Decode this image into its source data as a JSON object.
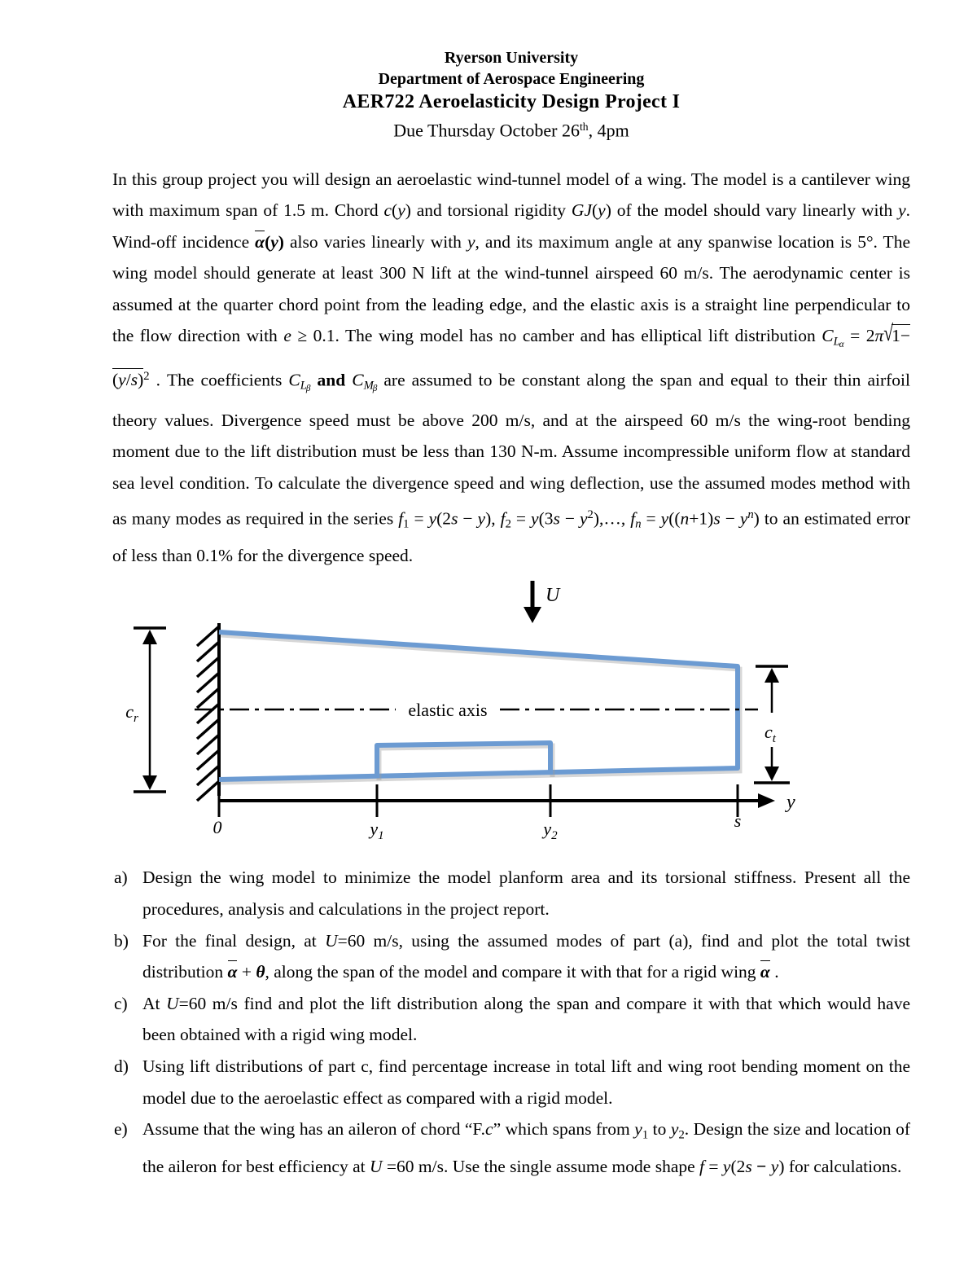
{
  "header": {
    "university": "Ryerson University",
    "department": "Department of Aerospace Engineering",
    "course_title": "AER722 Aeroelasticity Design Project I",
    "due": {
      "prefix": "Due Thursday October 26",
      "sup": "th",
      "suffix": ", 4pm"
    }
  },
  "intro_segments": [
    {
      "t": "In this group project you will design an aeroelastic wind-tunnel model of a wing. The model is a cantilever wing with maximum span of 1.5 m. Chord "
    },
    {
      "t": "c",
      "s": "i"
    },
    {
      "t": "("
    },
    {
      "t": "y",
      "s": "i"
    },
    {
      "t": ") and torsional rigidity "
    },
    {
      "t": "GJ",
      "s": "i"
    },
    {
      "t": "("
    },
    {
      "t": "y",
      "s": "i"
    },
    {
      "t": ")  of the model should vary linearly with "
    },
    {
      "t": "y",
      "s": "i"
    },
    {
      "t": ". Wind-off incidence "
    },
    {
      "t": "α",
      "s": "bi over"
    },
    {
      "t": "(",
      "s": "b"
    },
    {
      "t": "y",
      "s": "bi"
    },
    {
      "t": ")",
      "s": "b"
    },
    {
      "t": " also varies linearly with "
    },
    {
      "t": "y",
      "s": "i"
    },
    {
      "t": ", and its maximum angle at any spanwise location is 5°. The wing model should generate at least 300 N lift at the wind-tunnel airspeed 60 m/s. The aerodynamic center is assumed at the quarter chord point from the leading edge, and the elastic axis is a straight line perpendicular to the flow direction with "
    },
    {
      "t": "e",
      "s": "i"
    },
    {
      "t": " ≥ 0.1.  The wing model has no camber and has elliptical lift distribution "
    },
    {
      "t": "C",
      "s": "i"
    },
    {
      "t": "L",
      "s": "i sub"
    },
    {
      "t": "α",
      "s": "i subsub"
    },
    {
      "t": " = 2"
    },
    {
      "t": "π",
      "s": "i"
    },
    {
      "t": "√",
      "s": "rad"
    },
    {
      "t": "1−(",
      "s": "over"
    },
    {
      "t": "y",
      "s": "i over"
    },
    {
      "t": "/",
      "s": "over"
    },
    {
      "t": "s",
      "s": "i over"
    },
    {
      "t": ")",
      "s": "over"
    },
    {
      "t": "2",
      "s": "sup"
    },
    {
      "t": " .  The coefficients "
    },
    {
      "t": "C",
      "s": "i"
    },
    {
      "t": "L",
      "s": "i sub"
    },
    {
      "t": "β",
      "s": "i subsub"
    },
    {
      "t": " and ",
      "s": "b"
    },
    {
      "t": "C",
      "s": "i"
    },
    {
      "t": "M",
      "s": "i sub"
    },
    {
      "t": "β",
      "s": "i subsub"
    },
    {
      "t": " are assumed to be constant along the span and equal to their thin airfoil theory values. Divergence speed must be above 200 m/s, and at the airspeed 60 m/s the wing-root bending moment due to the lift distribution must be less than 130 N-m. Assume incompressible uniform flow at standard sea level condition. To calculate the divergence speed and wing deflection, use the assumed modes method with as many modes as required in the series "
    },
    {
      "t": "f",
      "s": "i"
    },
    {
      "t": "1",
      "s": "sub"
    },
    {
      "t": " = "
    },
    {
      "t": "y",
      "s": "i"
    },
    {
      "t": "(2"
    },
    {
      "t": "s",
      "s": "i"
    },
    {
      "t": " − "
    },
    {
      "t": "y",
      "s": "i"
    },
    {
      "t": "), "
    },
    {
      "t": "f",
      "s": "i"
    },
    {
      "t": "2",
      "s": "sub"
    },
    {
      "t": " = "
    },
    {
      "t": "y",
      "s": "i"
    },
    {
      "t": "(3"
    },
    {
      "t": "s",
      "s": "i"
    },
    {
      "t": " − "
    },
    {
      "t": "y",
      "s": "i"
    },
    {
      "t": "2",
      "s": "sup"
    },
    {
      "t": "),…, "
    },
    {
      "t": "f",
      "s": "i"
    },
    {
      "t": "n",
      "s": "i sub"
    },
    {
      "t": " = "
    },
    {
      "t": "y",
      "s": "i"
    },
    {
      "t": "(("
    },
    {
      "t": "n",
      "s": "i"
    },
    {
      "t": "+1)"
    },
    {
      "t": "s",
      "s": "i"
    },
    {
      "t": " − "
    },
    {
      "t": "y",
      "s": "i"
    },
    {
      "t": "n",
      "s": "i sup"
    },
    {
      "t": ")"
    },
    {
      "t": " to an estimated error of less than 0.1% for the divergence speed."
    }
  ],
  "figure": {
    "flow_label": "U",
    "elastic_axis_label": "elastic axis",
    "root_chord": {
      "base": "c",
      "sub": "r"
    },
    "tip_chord": {
      "base": "c",
      "sub": "t"
    },
    "axis_label": "y",
    "origin_label": "0",
    "y1": {
      "base": "y",
      "sub": "1"
    },
    "y2": {
      "base": "y",
      "sub": "2"
    },
    "span_label": "s",
    "wing_color": "#6c9bd2"
  },
  "tasks": [
    {
      "marker": "a)",
      "segments": [
        {
          "t": "Design the wing model to minimize the model planform area and its torsional stiffness. Present all the procedures, analysis and calculations in the project report."
        }
      ]
    },
    {
      "marker": "b)",
      "segments": [
        {
          "t": "For the final design, at "
        },
        {
          "t": "U",
          "s": "i"
        },
        {
          "t": "=60 m/s, using the assumed modes of part (a), find and plot the total twist distribution "
        },
        {
          "t": "α",
          "s": "bi over"
        },
        {
          "t": " + "
        },
        {
          "t": "θ",
          "s": "bi"
        },
        {
          "t": ", along the span of the model and compare it with that for a rigid wing "
        },
        {
          "t": "α",
          "s": "bi over"
        },
        {
          "t": " ."
        }
      ]
    },
    {
      "marker": "c)",
      "segments": [
        {
          "t": "At "
        },
        {
          "t": "U",
          "s": "i"
        },
        {
          "t": "=60 m/s find and plot the lift distribution along the span and compare it with that which would have been obtained with a rigid wing model."
        }
      ]
    },
    {
      "marker": "d)",
      "segments": [
        {
          "t": "Using lift distributions of part c, find percentage increase in total lift and wing root bending moment on the model due to the aeroelastic effect as compared with a rigid model."
        }
      ]
    },
    {
      "marker": "e)",
      "segments": [
        {
          "t": "Assume that the wing has an aileron of chord “F."
        },
        {
          "t": "c",
          "s": "i"
        },
        {
          "t": "” which spans from "
        },
        {
          "t": "y",
          "s": "i"
        },
        {
          "t": "1",
          "s": "sub"
        },
        {
          "t": " to "
        },
        {
          "t": "y",
          "s": "i"
        },
        {
          "t": "2",
          "s": "sub"
        },
        {
          "t": ". Design the size and location of the aileron for best efficiency at "
        },
        {
          "t": "U",
          "s": "i"
        },
        {
          "t": " =60 m/s. Use the single assume mode shape "
        },
        {
          "t": "f",
          "s": "i"
        },
        {
          "t": " = "
        },
        {
          "t": "y",
          "s": "i"
        },
        {
          "t": "(2"
        },
        {
          "t": "s",
          "s": "i"
        },
        {
          "t": " − ",
          "s": "b"
        },
        {
          "t": "y",
          "s": "i"
        },
        {
          "t": ")  for calculations."
        }
      ]
    }
  ]
}
